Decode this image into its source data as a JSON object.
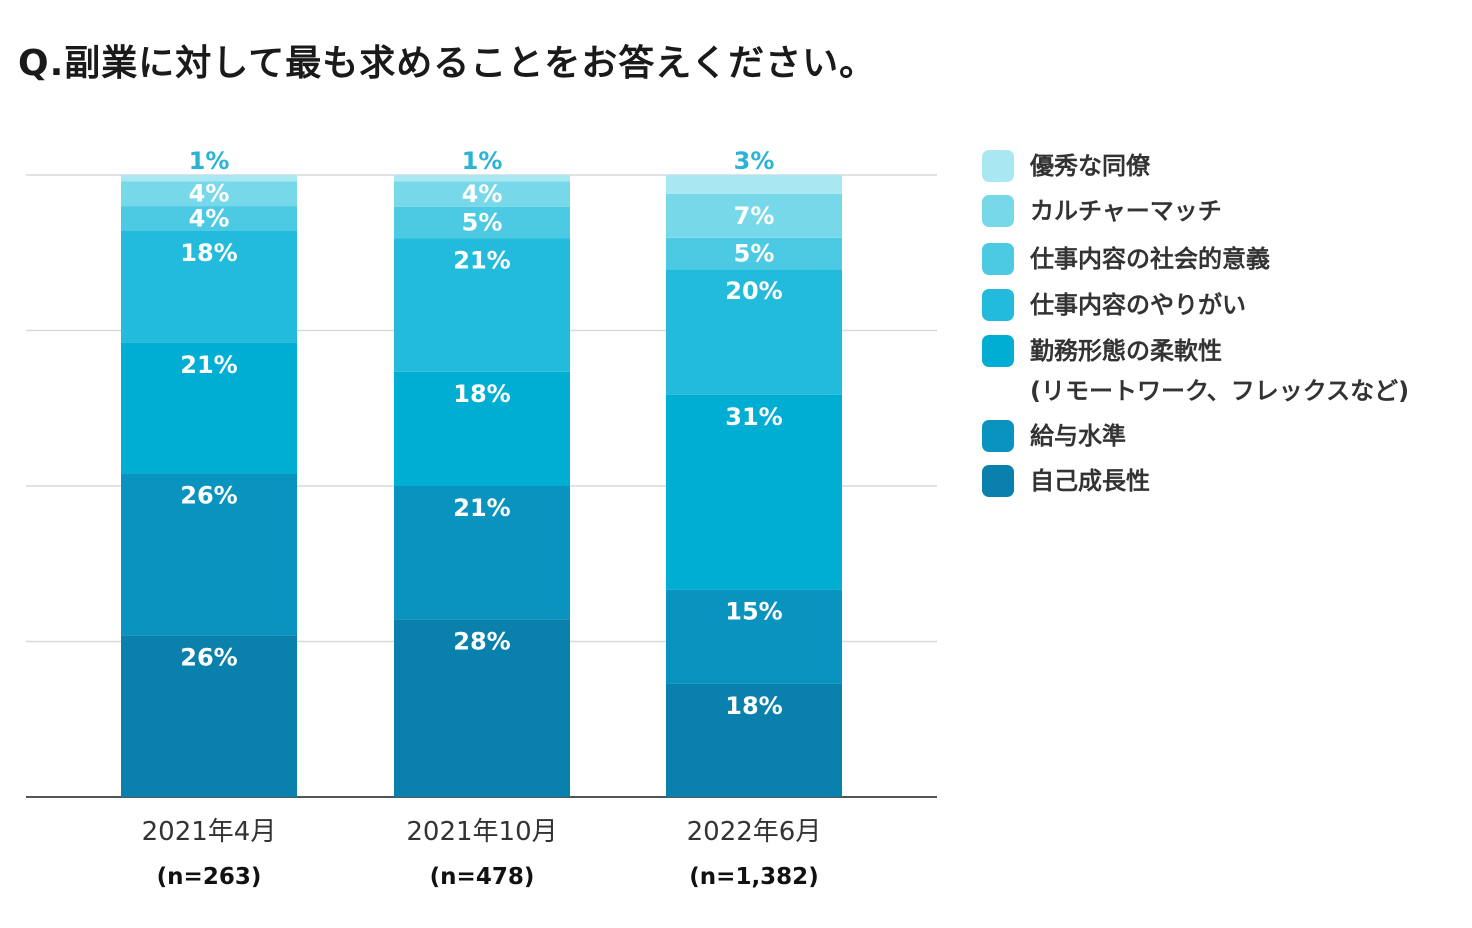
{
  "title": "Q.副業に対して最も求めることをお答えください。",
  "chart_data": {
    "type": "bar",
    "stacked": true,
    "title": "Q.副業に対して最も求めることをお答えください。",
    "categories": [
      "2021年4月",
      "2021年10月",
      "2022年6月"
    ],
    "sample_sizes": [
      "(n=263)",
      "(n=478)",
      "(n=1,382)"
    ],
    "ylim": [
      0,
      100
    ],
    "grid": true,
    "legend_position": "right",
    "series": [
      {
        "name": "自己成長性",
        "color": "#0a80ad",
        "values": [
          26,
          28,
          18
        ]
      },
      {
        "name": "給与水準",
        "color": "#0993bf",
        "values": [
          26,
          21,
          15
        ]
      },
      {
        "name": "勤務形態の柔軟性\n(リモートワーク、フレックスなど)",
        "color": "#00aed4",
        "values": [
          21,
          18,
          31
        ]
      },
      {
        "name": "仕事内容のやりがい",
        "color": "#22bbdb",
        "values": [
          18,
          21,
          20
        ]
      },
      {
        "name": "仕事内容の社会的意義",
        "color": "#4ccae3",
        "values": [
          4,
          5,
          5
        ]
      },
      {
        "name": "カルチャーマッチ",
        "color": "#77d8ea",
        "values": [
          4,
          4,
          7
        ]
      },
      {
        "name": "優秀な同僚",
        "color": "#a9e7f2",
        "values": [
          1,
          1,
          3
        ]
      }
    ],
    "value_labels": [
      [
        "26%",
        "28%",
        "18%"
      ],
      [
        "26%",
        "21%",
        "15%"
      ],
      [
        "21%",
        "18%",
        "31%"
      ],
      [
        "18%",
        "21%",
        "20%"
      ],
      [
        "4%",
        "5%",
        "5%"
      ],
      [
        "4%",
        "4%",
        "7%"
      ],
      [
        "1%",
        "1%",
        "3%"
      ]
    ],
    "top_label_color": "#2bb3d6"
  },
  "legend": {
    "items": [
      {
        "label": "優秀な同僚",
        "color": "#a9e7f2"
      },
      {
        "label": "カルチャーマッチ",
        "color": "#77d8ea"
      },
      {
        "label": "仕事内容の社会的意義",
        "color": "#4ccae3"
      },
      {
        "label": "仕事内容のやりがい",
        "color": "#22bbdb"
      },
      {
        "label": "勤務形態の柔軟性",
        "label_line2": "(リモートワーク、フレックスなど)",
        "color": "#00aed4"
      },
      {
        "label": "給与水準",
        "color": "#0993bf"
      },
      {
        "label": "自己成長性",
        "color": "#0a80ad"
      }
    ]
  }
}
